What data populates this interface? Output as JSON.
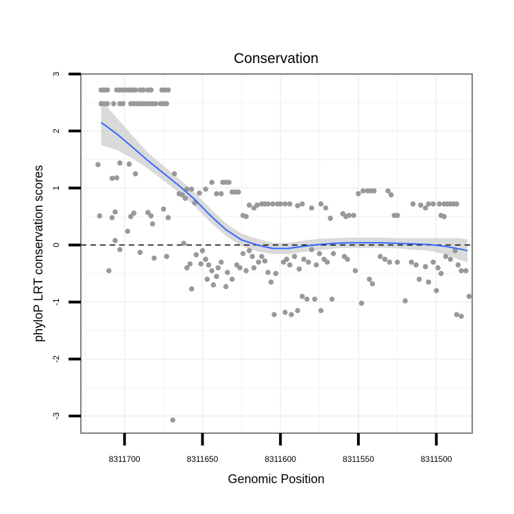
{
  "chart_data": {
    "type": "scatter",
    "title": "Conservation",
    "xlabel": "Genomic Position",
    "ylabel": "phyloP LRT conservation scores",
    "x_reversed": true,
    "xlim": [
      8311728,
      8311477
    ],
    "ylim": [
      -3.3,
      3.0
    ],
    "x_ticks": [
      8311700,
      8311650,
      8311600,
      8311550,
      8311500
    ],
    "x_tick_labels": [
      "8311700",
      "8311650",
      "8311600",
      "8311550",
      "8311500"
    ],
    "y_ticks": [
      3,
      2,
      1,
      0,
      -1,
      -2,
      -3
    ],
    "y_tick_labels": [
      "3",
      "2",
      "1",
      "0",
      "-1",
      "-2",
      "-3"
    ],
    "reference_line": 0,
    "grid": true,
    "colors": {
      "points": "#999999",
      "smooth_line": "#3366ff",
      "ci_band": "#d3d3d3",
      "panel_border": "#7f7f7f",
      "grid": "#f2f2f2",
      "reference_line": "#000000"
    },
    "series": [
      {
        "name": "phyloP scores",
        "points": [
          [
            8311715,
            2.72
          ],
          [
            8311713,
            2.72
          ],
          [
            8311711,
            2.72
          ],
          [
            8311705,
            2.72
          ],
          [
            8311703,
            2.72
          ],
          [
            8311701,
            2.72
          ],
          [
            8311699,
            2.72
          ],
          [
            8311697,
            2.72
          ],
          [
            8311695,
            2.72
          ],
          [
            8311693,
            2.72
          ],
          [
            8311690,
            2.72
          ],
          [
            8311688,
            2.72
          ],
          [
            8311685,
            2.72
          ],
          [
            8311683,
            2.72
          ],
          [
            8311676,
            2.72
          ],
          [
            8311674,
            2.72
          ],
          [
            8311672,
            2.72
          ],
          [
            8311715,
            2.48
          ],
          [
            8311713,
            2.48
          ],
          [
            8311711,
            2.48
          ],
          [
            8311707,
            2.48
          ],
          [
            8311703,
            2.48
          ],
          [
            8311701,
            2.48
          ],
          [
            8311696,
            2.48
          ],
          [
            8311694,
            2.48
          ],
          [
            8311692,
            2.48
          ],
          [
            8311690,
            2.48
          ],
          [
            8311688,
            2.48
          ],
          [
            8311686,
            2.48
          ],
          [
            8311684,
            2.48
          ],
          [
            8311682,
            2.48
          ],
          [
            8311680,
            2.48
          ],
          [
            8311677,
            2.48
          ],
          [
            8311675,
            2.48
          ],
          [
            8311673,
            2.48
          ],
          [
            8311717,
            1.41
          ],
          [
            8311703,
            1.44
          ],
          [
            8311697,
            1.42
          ],
          [
            8311693,
            1.25
          ],
          [
            8311708,
            1.17
          ],
          [
            8311705,
            1.18
          ],
          [
            8311668,
            1.25
          ],
          [
            8311665,
            0.9
          ],
          [
            8311663,
            0.88
          ],
          [
            8311660,
            0.98
          ],
          [
            8311657,
            0.98
          ],
          [
            8311661,
            0.82
          ],
          [
            8311655,
            0.74
          ],
          [
            8311652,
            0.91
          ],
          [
            8311648,
            0.98
          ],
          [
            8311644,
            1.1
          ],
          [
            8311641,
            0.9
          ],
          [
            8311638,
            0.9
          ],
          [
            8311637,
            1.1
          ],
          [
            8311635,
            1.1
          ],
          [
            8311633,
            1.1
          ],
          [
            8311631,
            0.93
          ],
          [
            8311629,
            0.93
          ],
          [
            8311627,
            0.93
          ],
          [
            8311716,
            0.51
          ],
          [
            8311708,
            0.48
          ],
          [
            8311706,
            0.58
          ],
          [
            8311696,
            0.5
          ],
          [
            8311694,
            0.56
          ],
          [
            8311685,
            0.57
          ],
          [
            8311683,
            0.51
          ],
          [
            8311675,
            0.63
          ],
          [
            8311672,
            0.48
          ],
          [
            8311682,
            0.37
          ],
          [
            8311698,
            0.24
          ],
          [
            8311706,
            0.08
          ],
          [
            8311703,
            -0.08
          ],
          [
            8311710,
            -0.45
          ],
          [
            8311690,
            -0.13
          ],
          [
            8311681,
            -0.23
          ],
          [
            8311673,
            -0.2
          ],
          [
            8311669,
            -3.07
          ],
          [
            8311662,
            0.03
          ],
          [
            8311660,
            -0.4
          ],
          [
            8311658,
            -0.33
          ],
          [
            8311657,
            -0.77
          ],
          [
            8311654,
            -0.17
          ],
          [
            8311651,
            -0.33
          ],
          [
            8311650,
            -0.1
          ],
          [
            8311648,
            -0.25
          ],
          [
            8311647,
            -0.6
          ],
          [
            8311646,
            -0.35
          ],
          [
            8311644,
            -0.45
          ],
          [
            8311643,
            -0.7
          ],
          [
            8311641,
            -0.55
          ],
          [
            8311640,
            -0.4
          ],
          [
            8311638,
            -0.3
          ],
          [
            8311635,
            -0.73
          ],
          [
            8311634,
            -0.48
          ],
          [
            8311631,
            -0.6
          ],
          [
            8311628,
            -0.35
          ],
          [
            8311626,
            -0.4
          ],
          [
            8311624,
            -0.15
          ],
          [
            8311622,
            -0.45
          ],
          [
            8311620,
            -0.1
          ],
          [
            8311618,
            -0.2
          ],
          [
            8311617,
            -0.4
          ],
          [
            8311614,
            -0.3
          ],
          [
            8311612,
            -0.2
          ],
          [
            8311610,
            -0.28
          ],
          [
            8311608,
            -0.48
          ],
          [
            8311606,
            -0.65
          ],
          [
            8311603,
            -0.5
          ],
          [
            8311598,
            -0.3
          ],
          [
            8311596,
            -0.25
          ],
          [
            8311594,
            -0.35
          ],
          [
            8311591,
            -0.2
          ],
          [
            8311588,
            -0.42
          ],
          [
            8311585,
            -0.25
          ],
          [
            8311582,
            -0.3
          ],
          [
            8311580,
            -0.08
          ],
          [
            8311577,
            -0.35
          ],
          [
            8311575,
            -0.15
          ],
          [
            8311572,
            -0.25
          ],
          [
            8311570,
            -0.3
          ],
          [
            8311566,
            -0.15
          ],
          [
            8311624,
            0.52
          ],
          [
            8311622,
            0.5
          ],
          [
            8311620,
            0.7
          ],
          [
            8311617,
            0.65
          ],
          [
            8311615,
            0.7
          ],
          [
            8311612,
            0.72
          ],
          [
            8311610,
            0.72
          ],
          [
            8311608,
            0.72
          ],
          [
            8311605,
            0.72
          ],
          [
            8311602,
            0.72
          ],
          [
            8311600,
            0.72
          ],
          [
            8311597,
            0.72
          ],
          [
            8311594,
            0.72
          ],
          [
            8311589,
            0.69
          ],
          [
            8311586,
            0.72
          ],
          [
            8311580,
            0.65
          ],
          [
            8311574,
            0.72
          ],
          [
            8311571,
            0.65
          ],
          [
            8311568,
            0.47
          ],
          [
            8311560,
            0.55
          ],
          [
            8311558,
            0.5
          ],
          [
            8311556,
            0.52
          ],
          [
            8311553,
            0.52
          ],
          [
            8311550,
            0.9
          ],
          [
            8311547,
            0.95
          ],
          [
            8311544,
            0.95
          ],
          [
            8311542,
            0.95
          ],
          [
            8311540,
            0.95
          ],
          [
            8311531,
            0.95
          ],
          [
            8311529,
            0.88
          ],
          [
            8311527,
            0.52
          ],
          [
            8311525,
            0.52
          ],
          [
            8311515,
            0.72
          ],
          [
            8311510,
            0.7
          ],
          [
            8311507,
            0.65
          ],
          [
            8311505,
            0.72
          ],
          [
            8311502,
            0.72
          ],
          [
            8311498,
            0.72
          ],
          [
            8311495,
            0.72
          ],
          [
            8311493,
            0.72
          ],
          [
            8311491,
            0.72
          ],
          [
            8311489,
            0.72
          ],
          [
            8311487,
            0.72
          ],
          [
            8311497,
            0.52
          ],
          [
            8311495,
            0.5
          ],
          [
            8311604,
            -1.22
          ],
          [
            8311597,
            -1.18
          ],
          [
            8311593,
            -1.22
          ],
          [
            8311589,
            -1.15
          ],
          [
            8311586,
            -0.9
          ],
          [
            8311583,
            -0.95
          ],
          [
            8311578,
            -0.95
          ],
          [
            8311574,
            -1.15
          ],
          [
            8311567,
            -0.95
          ],
          [
            8311559,
            -0.2
          ],
          [
            8311557,
            -0.25
          ],
          [
            8311552,
            -0.45
          ],
          [
            8311548,
            -1.02
          ],
          [
            8311543,
            -0.6
          ],
          [
            8311541,
            -0.68
          ],
          [
            8311536,
            -0.2
          ],
          [
            8311533,
            -0.25
          ],
          [
            8311530,
            -0.3
          ],
          [
            8311525,
            -0.3
          ],
          [
            8311520,
            -0.98
          ],
          [
            8311516,
            -0.3
          ],
          [
            8311513,
            -0.35
          ],
          [
            8311511,
            -0.6
          ],
          [
            8311507,
            -0.38
          ],
          [
            8311505,
            -0.65
          ],
          [
            8311502,
            -0.3
          ],
          [
            8311500,
            -0.8
          ],
          [
            8311497,
            -0.5
          ],
          [
            8311494,
            -0.2
          ],
          [
            8311491,
            -0.25
          ],
          [
            8311488,
            -0.1
          ],
          [
            8311486,
            -0.35
          ],
          [
            8311484,
            -0.45
          ],
          [
            8311481,
            -0.45
          ],
          [
            8311479,
            -0.9
          ],
          [
            8311487,
            -1.22
          ],
          [
            8311484,
            -1.25
          ],
          [
            8311499,
            -0.4
          ]
        ]
      },
      {
        "name": "loess fit",
        "x": [
          8311715,
          8311705,
          8311695,
          8311685,
          8311675,
          8311665,
          8311655,
          8311645,
          8311635,
          8311625,
          8311615,
          8311605,
          8311595,
          8311585,
          8311575,
          8311565,
          8311555,
          8311545,
          8311535,
          8311525,
          8311515,
          8311505,
          8311495,
          8311485,
          8311480
        ],
        "y": [
          2.15,
          1.95,
          1.72,
          1.48,
          1.26,
          1.04,
          0.8,
          0.52,
          0.27,
          0.09,
          0.0,
          -0.06,
          -0.06,
          -0.02,
          0.01,
          0.03,
          0.04,
          0.04,
          0.04,
          0.03,
          0.02,
          0.01,
          -0.02,
          -0.07,
          -0.1
        ],
        "ci_low": [
          1.75,
          1.67,
          1.52,
          1.34,
          1.13,
          0.92,
          0.68,
          0.4,
          0.16,
          -0.02,
          -0.11,
          -0.16,
          -0.16,
          -0.12,
          -0.09,
          -0.06,
          -0.05,
          -0.05,
          -0.05,
          -0.06,
          -0.08,
          -0.1,
          -0.16,
          -0.26,
          -0.3
        ],
        "ci_high": [
          2.55,
          2.23,
          1.92,
          1.62,
          1.39,
          1.16,
          0.92,
          0.64,
          0.38,
          0.2,
          0.11,
          0.04,
          0.04,
          0.08,
          0.11,
          0.12,
          0.13,
          0.13,
          0.13,
          0.12,
          0.12,
          0.12,
          0.12,
          0.12,
          0.1
        ]
      }
    ]
  }
}
